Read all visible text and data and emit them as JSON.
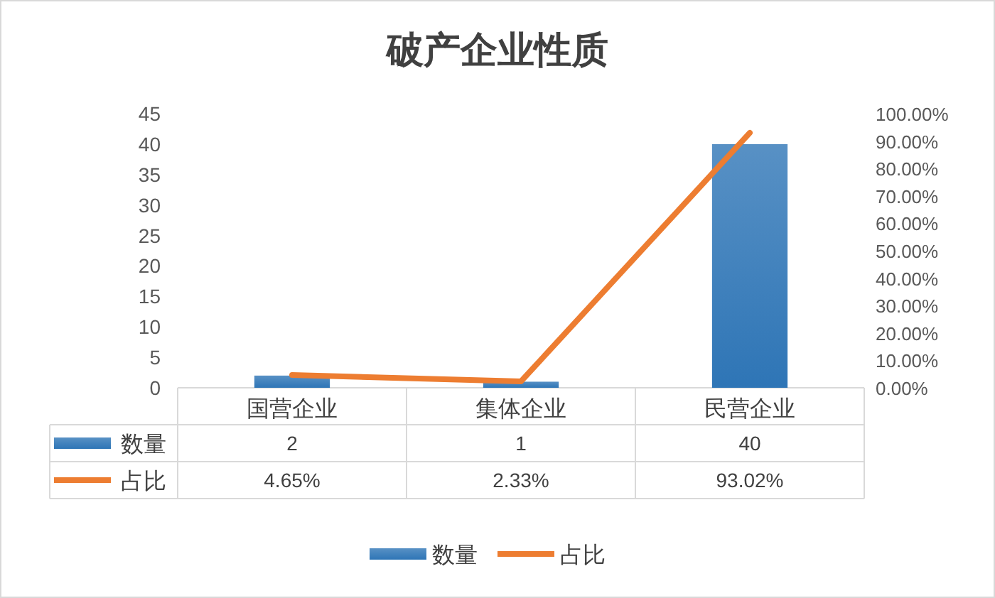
{
  "chart_data": {
    "type": "bar",
    "title": "破产企业性质",
    "categories": [
      "国营企业",
      "集体企业",
      "民营企业"
    ],
    "series": [
      {
        "name": "数量",
        "color": "#2e75b6",
        "values": [
          2,
          1,
          40
        ]
      },
      {
        "name": "占比",
        "type": "line",
        "axis": "y2",
        "color": "#ed7d31",
        "values": [
          4.65,
          2.33,
          93.02
        ],
        "value_labels": [
          "4.65%",
          "2.33%",
          "93.02%"
        ]
      }
    ],
    "ylim": [
      0,
      45
    ],
    "yticks": [
      0,
      5,
      10,
      15,
      20,
      25,
      30,
      35,
      40,
      45
    ],
    "y2lim": [
      0,
      100
    ],
    "y2ticks": [
      {
        "value": 0,
        "label": "0.00%"
      },
      {
        "value": 10,
        "label": "10.00%"
      },
      {
        "value": 20,
        "label": "20.00%"
      },
      {
        "value": 30,
        "label": "30.00%"
      },
      {
        "value": 40,
        "label": "40.00%"
      },
      {
        "value": 50,
        "label": "50.00%"
      },
      {
        "value": 60,
        "label": "60.00%"
      },
      {
        "value": 70,
        "label": "70.00%"
      },
      {
        "value": 80,
        "label": "80.00%"
      },
      {
        "value": 90,
        "label": "90.00%"
      },
      {
        "value": 100,
        "label": "100.00%"
      }
    ],
    "data_labels": true,
    "legend": "bottom"
  }
}
